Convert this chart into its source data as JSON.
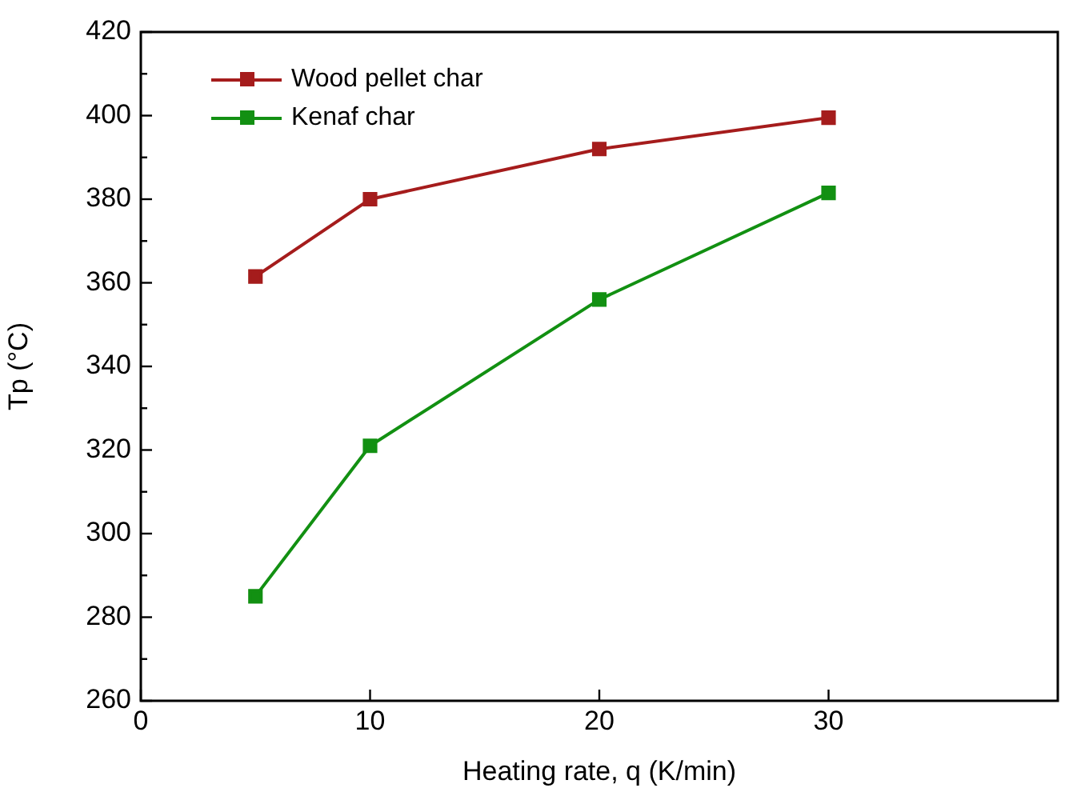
{
  "chart_data": {
    "type": "line",
    "xlabel": "Heating rate, q (K/min)",
    "ylabel": "Tp (°C)",
    "x": [
      5,
      10,
      20,
      30
    ],
    "series": [
      {
        "name": "Wood pellet char",
        "color": "#a51c1c",
        "values": [
          361.5,
          380,
          392,
          399.5
        ]
      },
      {
        "name": "Kenaf char",
        "color": "#129012",
        "values": [
          285,
          321,
          356,
          381.5
        ]
      }
    ],
    "xlim": [
      0,
      40
    ],
    "xticks": [
      0,
      10,
      20,
      30
    ],
    "ylim": [
      260,
      420
    ],
    "yticks": [
      260,
      280,
      300,
      320,
      340,
      360,
      380,
      400,
      420
    ],
    "marker": "square",
    "line_style": "solid",
    "grid": false,
    "legend": "top left"
  }
}
